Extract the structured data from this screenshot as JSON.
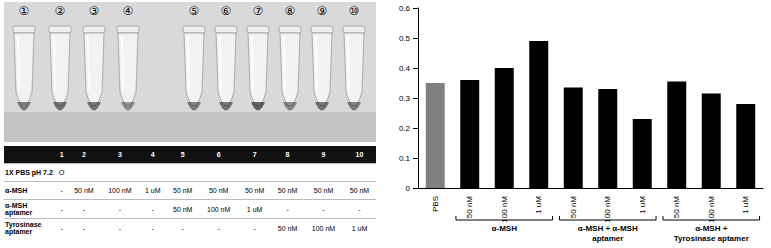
{
  "tube_labels": [
    "①",
    "②",
    "③",
    "④",
    "⑤",
    "⑥",
    "⑦",
    "⑧",
    "⑨",
    "⑩"
  ],
  "table": {
    "header": [
      null,
      "1",
      "2",
      "3",
      "4",
      "5",
      "6",
      "7",
      "8",
      "9",
      "10"
    ],
    "rows": [
      [
        "1X PBS pH 7.2",
        "O",
        null,
        null,
        null,
        null,
        null,
        null,
        null,
        null,
        null
      ],
      [
        "α-MSH",
        "-",
        "50 nM",
        "100 nM",
        "1 uM",
        "50 nM",
        "50 nM",
        "50 nM",
        "50 nM",
        "50 nM",
        "50 nM"
      ],
      [
        "α-MSH aptamer",
        "-",
        "-",
        "-",
        "-",
        "50 nM",
        "100 nM",
        "1 uM",
        "-",
        "-",
        "-"
      ],
      [
        "Tyrosinase aptamer",
        "-",
        "-",
        "-",
        "-",
        "-",
        "-",
        "-",
        "50 nM",
        "100 nM",
        "1 uM"
      ]
    ]
  },
  "chart_data": {
    "type": "bar",
    "categories": [
      "PBS",
      "50 nM",
      "100 nM",
      "1 uM",
      "50 nM",
      "100 nM",
      "1 uM",
      "50 nM",
      "100 nM",
      "1 uM"
    ],
    "values": [
      0.35,
      0.36,
      0.4,
      0.49,
      0.335,
      0.33,
      0.23,
      0.355,
      0.315,
      0.28
    ],
    "colors": [
      "#808080",
      "#000000",
      "#000000",
      "#000000",
      "#000000",
      "#000000",
      "#000000",
      "#000000",
      "#000000",
      "#000000"
    ],
    "ylim": [
      0,
      0.6
    ],
    "yticks": [
      0,
      0.1,
      0.2,
      0.3,
      0.4,
      0.5,
      0.6
    ],
    "grid": false,
    "data_labels": false,
    "groups": [
      {
        "label": [
          "α-MSH"
        ],
        "members": [
          1,
          2,
          3
        ]
      },
      {
        "label": [
          "α-MSH + α-MSH",
          "aptamer"
        ],
        "members": [
          4,
          5,
          6
        ]
      },
      {
        "label": [
          "α-MSH +",
          "Tyrosinase aptamer"
        ],
        "members": [
          7,
          8,
          9
        ]
      }
    ]
  }
}
